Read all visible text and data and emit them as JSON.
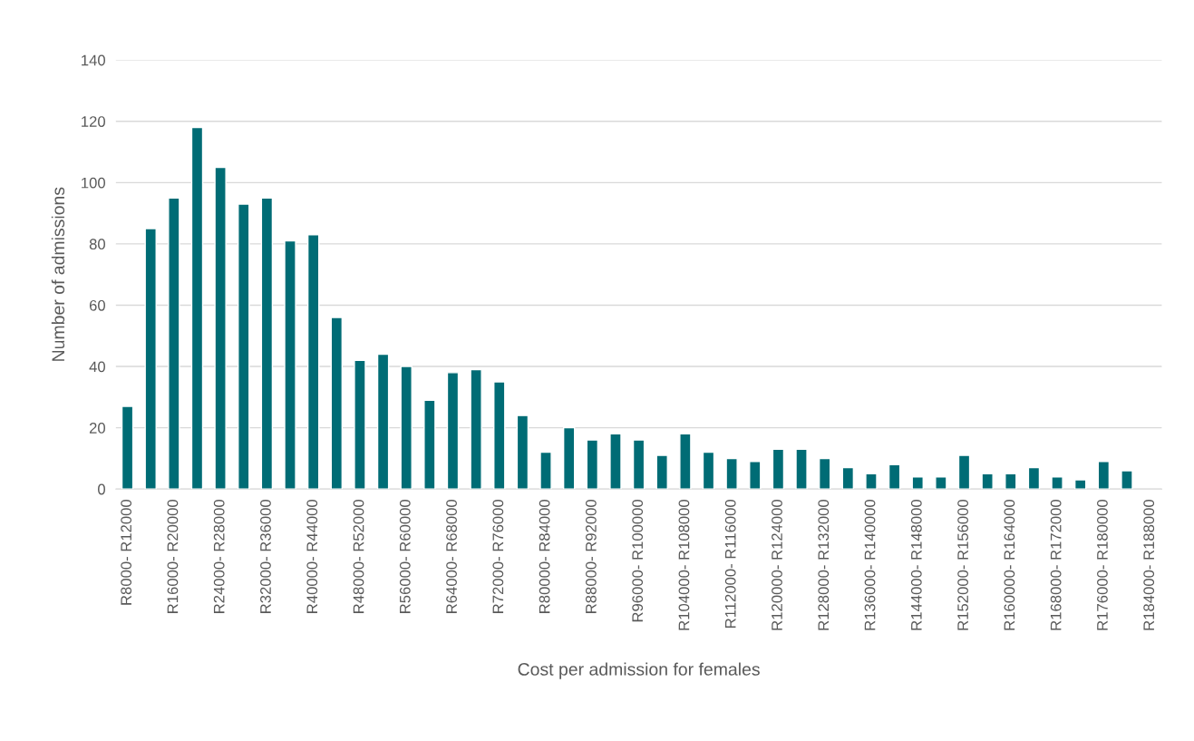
{
  "chart_data": {
    "type": "bar",
    "xlabel": "Cost per admission for females",
    "ylabel": "Number of admissions",
    "categories": [
      "R8000- R12000",
      null,
      "R16000- R20000",
      null,
      "R24000- R28000",
      null,
      "R32000- R36000",
      null,
      "R40000- R44000",
      null,
      "R48000- R52000",
      null,
      "R56000- R60000",
      null,
      "R64000- R68000",
      null,
      "R72000- R76000",
      null,
      "R80000- R84000",
      null,
      "R88000- R92000",
      null,
      "R96000- R100000",
      null,
      "R104000- R108000",
      null,
      "R112000- R116000",
      null,
      "R120000- R124000",
      null,
      "R128000- R132000",
      null,
      "R136000- R140000",
      null,
      "R144000- R148000",
      null,
      "R152000- R156000",
      null,
      "R160000- R164000",
      null,
      "R168000- R172000",
      null,
      "R176000- R180000",
      null,
      "R184000- R188000"
    ],
    "values": [
      27,
      85,
      95,
      118,
      105,
      93,
      95,
      81,
      83,
      56,
      42,
      44,
      40,
      29,
      38,
      39,
      35,
      24,
      12,
      20,
      16,
      18,
      16,
      11,
      18,
      12,
      10,
      9,
      13,
      13,
      10,
      7,
      5,
      8,
      4,
      4,
      11,
      5,
      5,
      7,
      4,
      3,
      9,
      6,
      null
    ],
    "color": "#006c75",
    "ylim": [
      0,
      140
    ],
    "yticks": [
      0,
      20,
      40,
      60,
      80,
      100,
      120,
      140
    ],
    "grid": "y"
  }
}
